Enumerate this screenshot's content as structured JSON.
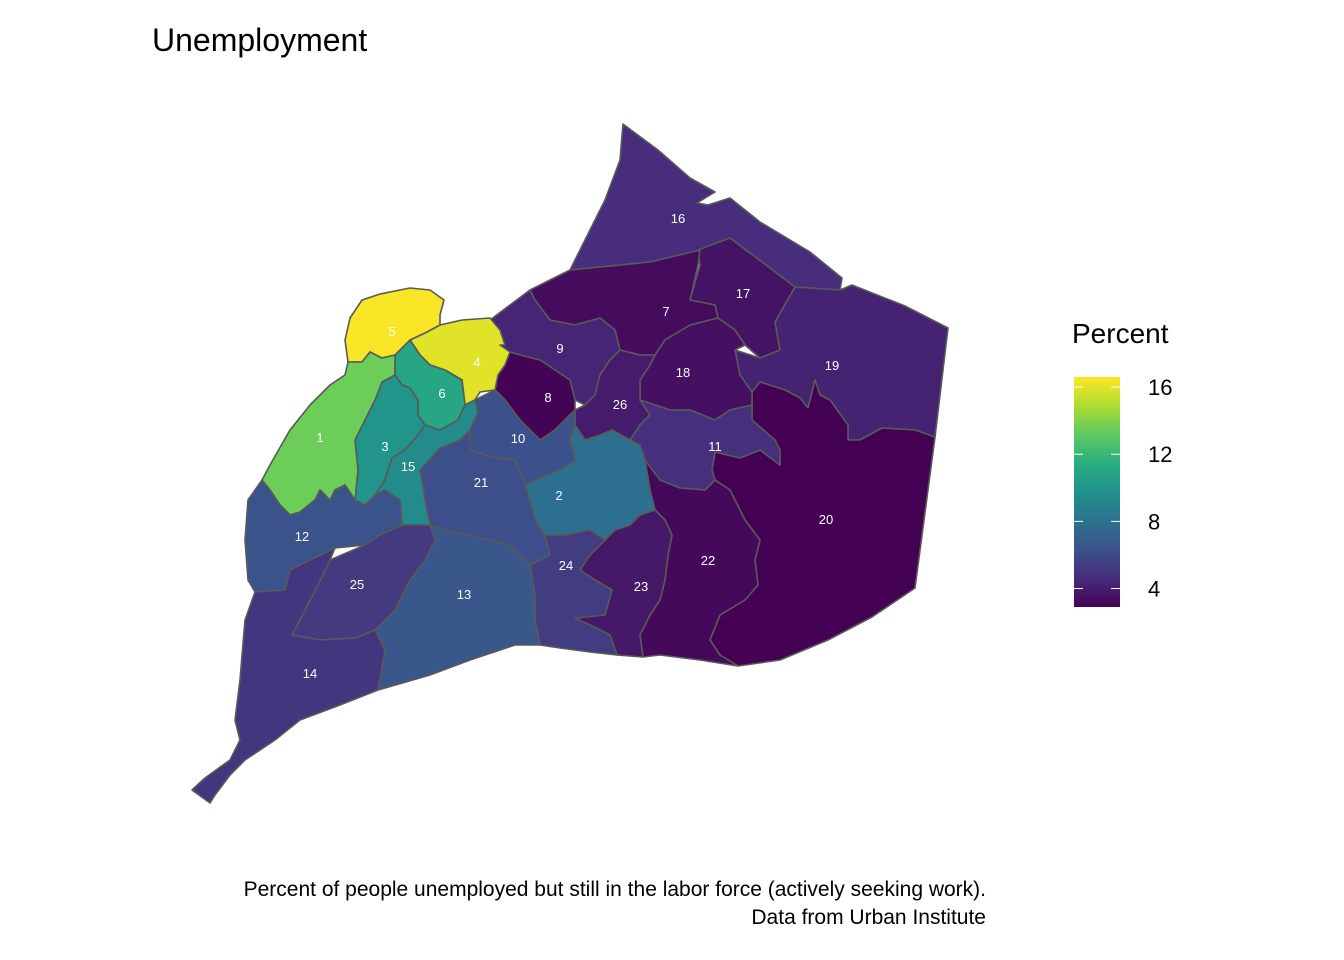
{
  "title": "Unemployment",
  "legend": {
    "title": "Percent",
    "ticks": [
      16,
      12,
      8,
      4
    ],
    "min": 2.9,
    "max": 16.6,
    "colors": [
      "#440154",
      "#472d7b",
      "#3b528b",
      "#2c728e",
      "#21918c",
      "#28ae80",
      "#5ec962",
      "#addc30",
      "#fde725"
    ]
  },
  "caption": {
    "line1": "Percent of people unemployed but still in the labor force (actively seeking work).",
    "line2": "Data from Urban Institute"
  },
  "districts": [
    {
      "id": "1",
      "value": 13.5
    },
    {
      "id": "2",
      "value": 7.9
    },
    {
      "id": "3",
      "value": 10.0
    },
    {
      "id": "4",
      "value": 16.0
    },
    {
      "id": "5",
      "value": 16.5
    },
    {
      "id": "6",
      "value": 11.0
    },
    {
      "id": "7",
      "value": 3.3
    },
    {
      "id": "8",
      "value": 3.0
    },
    {
      "id": "9",
      "value": 4.3
    },
    {
      "id": "10",
      "value": 6.3
    },
    {
      "id": "11",
      "value": 4.7
    },
    {
      "id": "12",
      "value": 6.4
    },
    {
      "id": "13",
      "value": 6.6
    },
    {
      "id": "14",
      "value": 5.0
    },
    {
      "id": "15",
      "value": 9.4
    },
    {
      "id": "16",
      "value": 4.6
    },
    {
      "id": "17",
      "value": 3.6
    },
    {
      "id": "18",
      "value": 3.5
    },
    {
      "id": "19",
      "value": 4.2
    },
    {
      "id": "20",
      "value": 2.9
    },
    {
      "id": "21",
      "value": 6.2
    },
    {
      "id": "22",
      "value": 3.2
    },
    {
      "id": "23",
      "value": 3.8
    },
    {
      "id": "24",
      "value": 5.3
    },
    {
      "id": "25",
      "value": 5.2
    },
    {
      "id": "26",
      "value": 3.9
    }
  ]
}
